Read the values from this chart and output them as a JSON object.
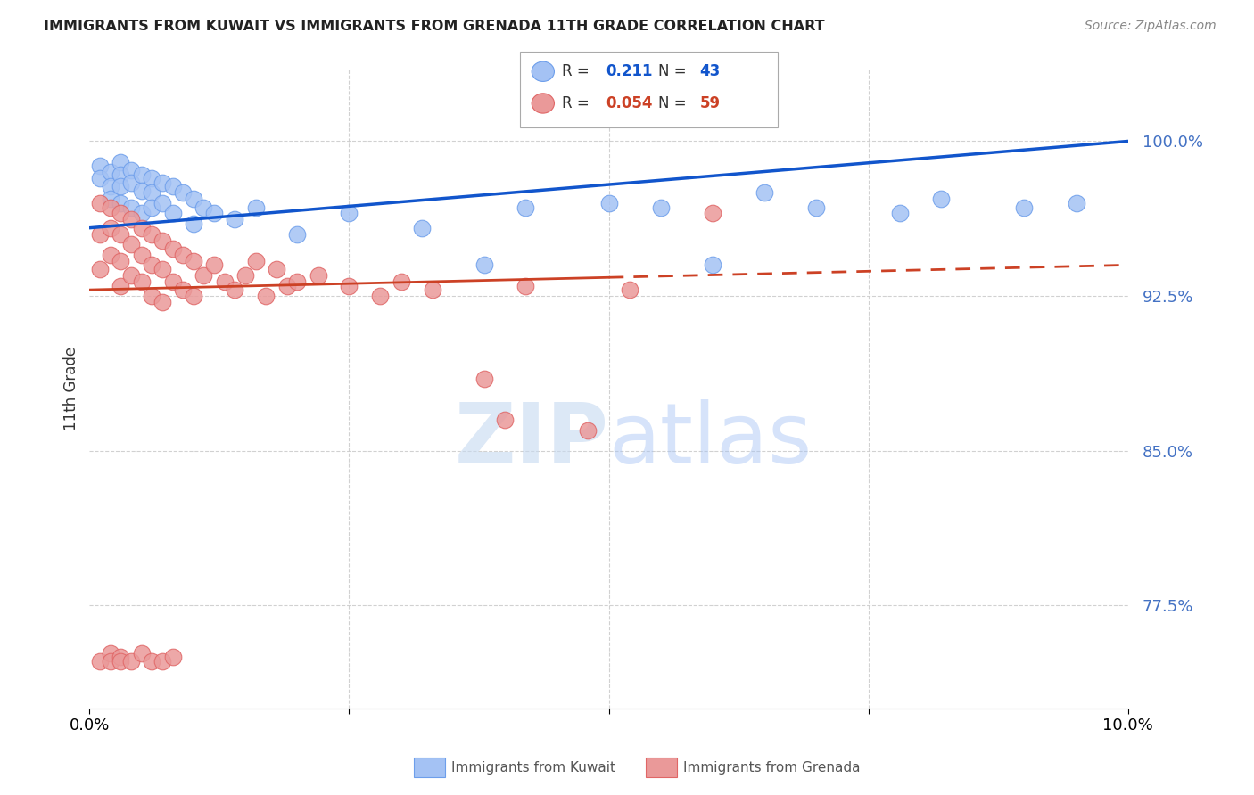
{
  "title": "IMMIGRANTS FROM KUWAIT VS IMMIGRANTS FROM GRENADA 11TH GRADE CORRELATION CHART",
  "source": "Source: ZipAtlas.com",
  "ylabel": "11th Grade",
  "yticks": [
    0.775,
    0.85,
    0.925,
    1.0
  ],
  "ytick_labels": [
    "77.5%",
    "85.0%",
    "92.5%",
    "100.0%"
  ],
  "xlim": [
    0.0,
    0.1
  ],
  "ylim": [
    0.725,
    1.035
  ],
  "blue_color": "#a4c2f4",
  "pink_color": "#ea9999",
  "blue_edge_color": "#6d9eeb",
  "pink_edge_color": "#e06666",
  "blue_line_color": "#1155cc",
  "pink_line_color": "#cc4125",
  "blue_R": "0.211",
  "blue_N": "43",
  "pink_R": "0.054",
  "pink_N": "59",
  "legend_label_blue": "Immigrants from Kuwait",
  "legend_label_pink": "Immigrants from Grenada",
  "watermark_zip": "ZIP",
  "watermark_atlas": "atlas",
  "blue_scatter_x": [
    0.001,
    0.001,
    0.002,
    0.002,
    0.002,
    0.003,
    0.003,
    0.003,
    0.003,
    0.004,
    0.004,
    0.004,
    0.005,
    0.005,
    0.005,
    0.006,
    0.006,
    0.006,
    0.007,
    0.007,
    0.008,
    0.008,
    0.009,
    0.01,
    0.01,
    0.011,
    0.012,
    0.014,
    0.016,
    0.02,
    0.025,
    0.032,
    0.038,
    0.042,
    0.05,
    0.055,
    0.06,
    0.065,
    0.07,
    0.078,
    0.082,
    0.09,
    0.095
  ],
  "blue_scatter_y": [
    0.988,
    0.982,
    0.985,
    0.978,
    0.972,
    0.99,
    0.984,
    0.978,
    0.97,
    0.986,
    0.98,
    0.968,
    0.984,
    0.976,
    0.965,
    0.982,
    0.975,
    0.968,
    0.98,
    0.97,
    0.978,
    0.965,
    0.975,
    0.972,
    0.96,
    0.968,
    0.965,
    0.962,
    0.968,
    0.955,
    0.965,
    0.958,
    0.94,
    0.968,
    0.97,
    0.968,
    0.94,
    0.975,
    0.968,
    0.965,
    0.972,
    0.968,
    0.97
  ],
  "pink_scatter_x": [
    0.001,
    0.001,
    0.001,
    0.002,
    0.002,
    0.002,
    0.003,
    0.003,
    0.003,
    0.003,
    0.004,
    0.004,
    0.004,
    0.005,
    0.005,
    0.005,
    0.006,
    0.006,
    0.006,
    0.007,
    0.007,
    0.007,
    0.008,
    0.008,
    0.009,
    0.009,
    0.01,
    0.01,
    0.011,
    0.012,
    0.013,
    0.014,
    0.015,
    0.016,
    0.017,
    0.018,
    0.019,
    0.02,
    0.022,
    0.025,
    0.028,
    0.03,
    0.033,
    0.038,
    0.042,
    0.048,
    0.052,
    0.04,
    0.06,
    0.001,
    0.002,
    0.002,
    0.003,
    0.003,
    0.004,
    0.005,
    0.006,
    0.007,
    0.008
  ],
  "pink_scatter_y": [
    0.97,
    0.955,
    0.938,
    0.968,
    0.958,
    0.945,
    0.965,
    0.955,
    0.942,
    0.93,
    0.962,
    0.95,
    0.935,
    0.958,
    0.945,
    0.932,
    0.955,
    0.94,
    0.925,
    0.952,
    0.938,
    0.922,
    0.948,
    0.932,
    0.945,
    0.928,
    0.942,
    0.925,
    0.935,
    0.94,
    0.932,
    0.928,
    0.935,
    0.942,
    0.925,
    0.938,
    0.93,
    0.932,
    0.935,
    0.93,
    0.925,
    0.932,
    0.928,
    0.885,
    0.93,
    0.86,
    0.928,
    0.865,
    0.965,
    0.748,
    0.752,
    0.748,
    0.75,
    0.748,
    0.748,
    0.752,
    0.748,
    0.748,
    0.75
  ],
  "blue_line_x0": 0.0,
  "blue_line_y0": 0.958,
  "blue_line_x1": 0.1,
  "blue_line_y1": 1.0,
  "pink_line_x0": 0.0,
  "pink_line_y0": 0.928,
  "pink_line_xsolid": 0.05,
  "pink_line_ysolid": 0.934,
  "pink_line_x1": 0.1,
  "pink_line_y1": 0.94
}
